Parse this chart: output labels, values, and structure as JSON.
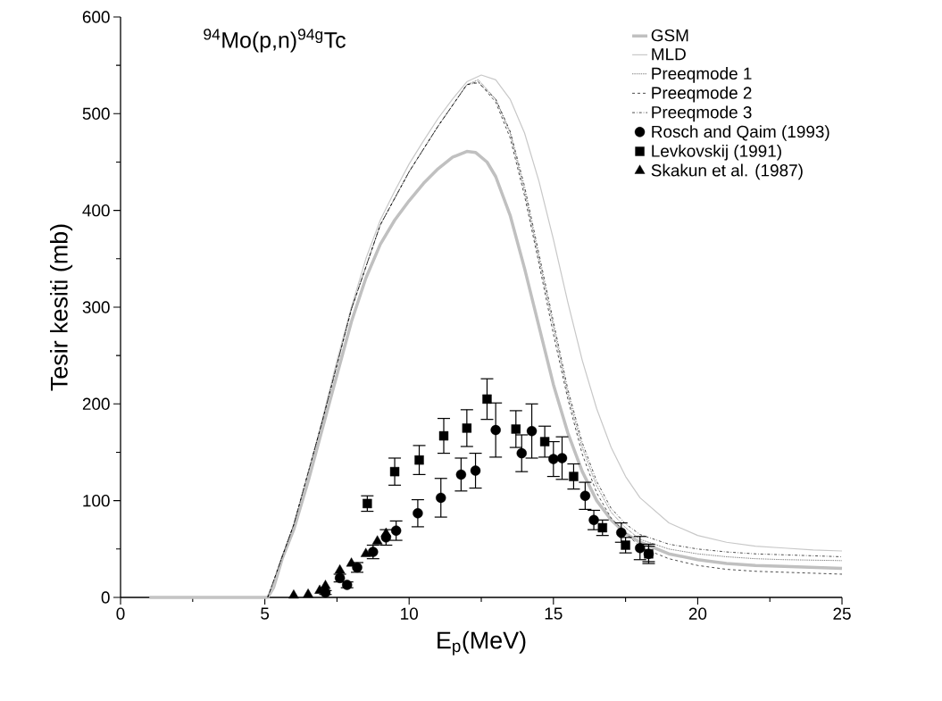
{
  "chart_data": {
    "type": "line",
    "title": "$^{94}$Mo(p,n)$^{94g}$Tc",
    "xlabel": "E$_{p}$(MeV)",
    "ylabel": "Tesir kesiti (mb)",
    "xlim": [
      0,
      25
    ],
    "ylim": [
      0,
      600
    ],
    "xticks": [
      0,
      5,
      10,
      15,
      20,
      25
    ],
    "yticks": [
      0,
      100,
      200,
      300,
      400,
      500,
      600
    ],
    "grid": false,
    "legend": "top right",
    "series": [
      {
        "name": "GSM",
        "color": "#c0c0c0",
        "line_style": "solid",
        "marker": "none",
        "x": [
          1,
          5.1,
          5.3,
          5.6,
          6,
          6.5,
          7,
          7.5,
          8,
          8.5,
          9,
          9.5,
          10,
          10.5,
          11,
          11.5,
          12,
          12.3,
          12.7,
          13,
          13.5,
          14,
          14.5,
          15,
          15.5,
          16,
          16.5,
          17,
          17.5,
          18,
          19,
          20,
          21,
          22,
          23,
          24,
          25
        ],
        "values": [
          0,
          0,
          10,
          40,
          70,
          120,
          175,
          230,
          285,
          330,
          365,
          390,
          410,
          428,
          443,
          455,
          461,
          460,
          450,
          435,
          395,
          340,
          280,
          220,
          170,
          130,
          100,
          80,
          66,
          57,
          45,
          39,
          35,
          33,
          32,
          31,
          30
        ]
      },
      {
        "name": "MLD",
        "color": "#c8c8c8",
        "line_style": "solid",
        "marker": "none",
        "x": [
          1,
          5.1,
          5.3,
          5.6,
          6,
          6.5,
          7,
          7.5,
          8,
          8.5,
          9,
          9.5,
          10,
          10.5,
          11,
          11.5,
          12,
          12.5,
          13,
          13.5,
          14,
          14.5,
          15,
          15.5,
          16,
          16.5,
          17,
          17.5,
          18,
          19,
          20,
          21,
          22,
          23,
          24,
          25
        ],
        "values": [
          0,
          0,
          10,
          42,
          75,
          125,
          185,
          245,
          300,
          350,
          390,
          420,
          448,
          472,
          495,
          515,
          533,
          540,
          535,
          515,
          480,
          430,
          370,
          305,
          245,
          195,
          155,
          125,
          103,
          77,
          64,
          57,
          53,
          51,
          49,
          48
        ]
      },
      {
        "name": "Preeqmode 1",
        "color": "#000000",
        "line_style": "dotted",
        "marker": "none",
        "x": [
          5.1,
          5.6,
          6,
          7,
          8,
          9,
          10,
          11,
          12,
          12.4,
          13,
          13.5,
          14,
          14.5,
          15,
          15.5,
          16,
          16.5,
          17,
          17.5,
          18,
          19,
          20,
          21,
          22,
          23,
          25
        ],
        "values": [
          0,
          42,
          75,
          183,
          298,
          385,
          440,
          487,
          530,
          535,
          515,
          480,
          420,
          350,
          280,
          210,
          155,
          115,
          88,
          72,
          60,
          50,
          45,
          42,
          40,
          39,
          38
        ]
      },
      {
        "name": "Preeqmode 2",
        "color": "#000000",
        "line_style": "dashed",
        "marker": "none",
        "x": [
          5.1,
          5.6,
          6,
          7,
          8,
          9,
          10,
          11,
          12,
          12.4,
          13,
          13.5,
          14,
          14.5,
          15,
          15.5,
          16,
          16.5,
          17,
          18,
          19,
          20,
          21,
          22,
          23,
          25
        ],
        "values": [
          0,
          42,
          75,
          183,
          298,
          385,
          440,
          487,
          530,
          533,
          512,
          475,
          415,
          345,
          272,
          205,
          148,
          108,
          82,
          52,
          40,
          33,
          29,
          27,
          26,
          24
        ]
      },
      {
        "name": "Preeqmode 3",
        "color": "#000000",
        "line_style": "dashdot",
        "marker": "none",
        "x": [
          5.1,
          5.6,
          6,
          7,
          8,
          9,
          10,
          11,
          12,
          12.4,
          13,
          13.5,
          14,
          14.5,
          15,
          15.5,
          16,
          16.5,
          17,
          17.5,
          18,
          19,
          20,
          21,
          22,
          23,
          25
        ],
        "values": [
          0,
          42,
          75,
          183,
          298,
          385,
          440,
          487,
          530,
          532,
          515,
          482,
          425,
          355,
          285,
          215,
          160,
          120,
          92,
          76,
          65,
          55,
          50,
          47,
          45,
          44,
          42
        ]
      },
      {
        "name": "Rosch and Qaim (1993)",
        "type": "scatter",
        "color": "#000000",
        "marker": "circle",
        "x": [
          7.1,
          7.6,
          7.85,
          8.2,
          8.75,
          9.2,
          9.55,
          10.3,
          11.1,
          11.8,
          12.3,
          13.0,
          13.9,
          14.25,
          15.0,
          15.3,
          16.1,
          16.4,
          17.35,
          18.0,
          18.3
        ],
        "values": [
          5,
          20,
          13,
          31,
          47,
          62,
          69,
          87,
          103,
          127,
          131,
          173,
          149,
          172,
          143,
          144,
          105,
          80,
          67,
          51,
          45
        ],
        "errors": [
          2,
          4,
          3,
          5,
          7,
          8,
          10,
          14,
          20,
          17,
          18,
          28,
          19,
          28,
          18,
          22,
          14,
          10,
          10,
          12,
          10
        ]
      },
      {
        "name": "Levkovskij (1991)",
        "type": "scatter",
        "color": "#000000",
        "marker": "square",
        "x": [
          8.55,
          9.5,
          10.35,
          11.2,
          12.0,
          12.7,
          13.7,
          14.7,
          15.7,
          16.7,
          17.5,
          18.3
        ],
        "values": [
          97,
          130,
          142,
          167,
          175,
          205,
          174,
          161,
          125,
          72,
          54,
          45
        ],
        "errors": [
          8,
          14,
          15,
          18,
          19,
          21,
          19,
          16,
          13,
          8,
          8,
          8
        ]
      },
      {
        "name": "Skakun et al. (1987)",
        "type": "scatter",
        "color": "#000000",
        "marker": "triangle",
        "x": [
          6.0,
          6.5,
          6.9,
          7.1,
          7.6,
          8.0,
          8.5,
          8.9,
          9.2
        ],
        "values": [
          2,
          3,
          7,
          12,
          28,
          35,
          45,
          58,
          66
        ]
      }
    ]
  }
}
